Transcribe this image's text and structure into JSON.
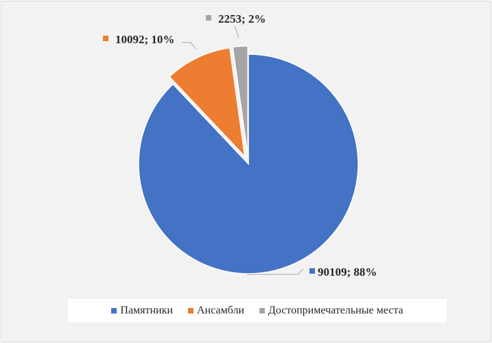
{
  "chart_data": {
    "type": "pie",
    "title": "",
    "categories": [
      "Памятники",
      "Ансамбли",
      "Достопримечательные места"
    ],
    "values": [
      90109,
      10092,
      2253
    ],
    "percents": [
      88,
      10,
      2
    ],
    "labels": [
      "90109; 88%",
      "10092; 10%",
      "2253; 2%"
    ],
    "colors": [
      "#4472c4",
      "#ed7d31",
      "#a5a5a5"
    ],
    "exploded": [
      false,
      true,
      true
    ],
    "legend_position": "bottom"
  },
  "legend": {
    "items": [
      {
        "label": "Памятники",
        "color": "#4472c4"
      },
      {
        "label": "Ансамбли",
        "color": "#ed7d31"
      },
      {
        "label": "Достопримечательные места",
        "color": "#a5a5a5"
      }
    ]
  }
}
